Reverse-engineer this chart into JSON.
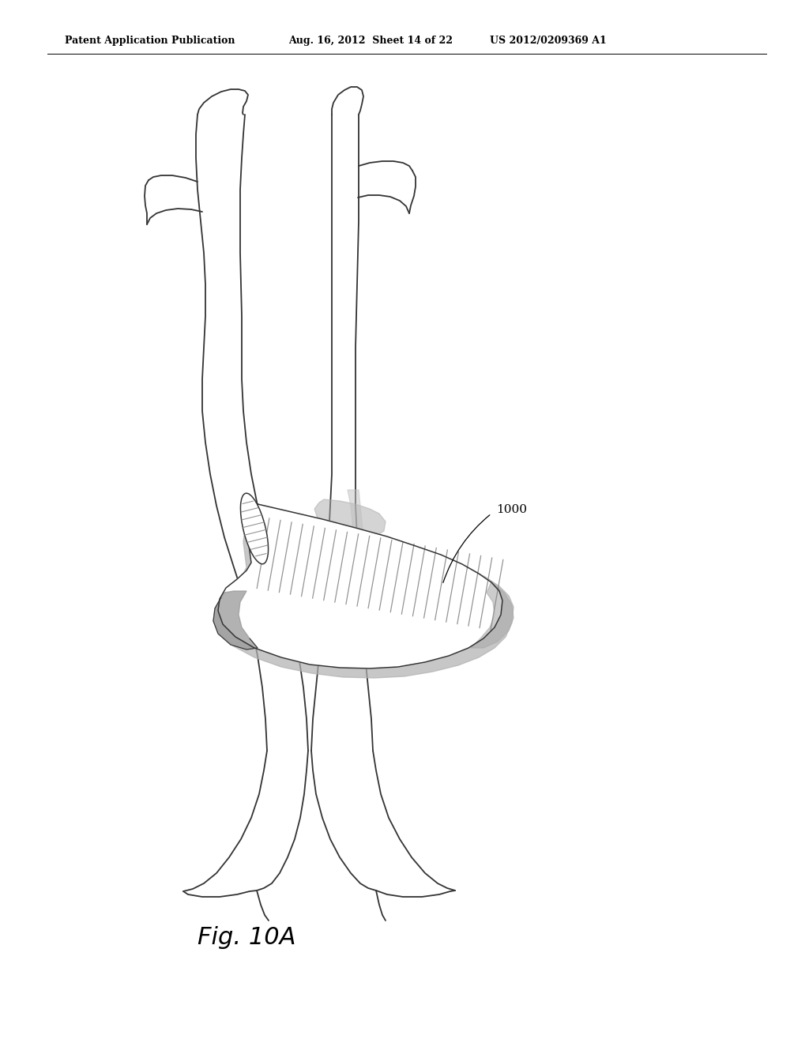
{
  "background_color": "#ffffff",
  "header_left": "Patent Application Publication",
  "header_center": "Aug. 16, 2012  Sheet 14 of 22",
  "header_right": "US 2012/0209369 A1",
  "figure_label": "Fig. 10A",
  "label_1000": "1000",
  "line_color": "#333333",
  "line_width": 1.3,
  "graft_hatch_color": "#888888",
  "graft_shadow_color": "#aaaaaa",
  "graft_fill_color": "#e8e8e8"
}
